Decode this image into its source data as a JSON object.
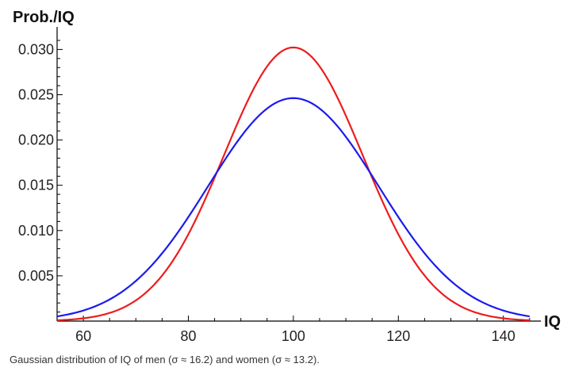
{
  "caption": "Gaussian distribution of IQ of men (σ ≈ 16.2) and women (σ ≈ 13.2).",
  "chart_data": {
    "type": "line",
    "title": "",
    "xlabel": "IQ",
    "ylabel": "Prob./IQ",
    "xlim": [
      55,
      146
    ],
    "ylim": [
      0,
      0.031
    ],
    "xticks": [
      60,
      80,
      100,
      120,
      140
    ],
    "xtick_labels": [
      "60",
      "80",
      "100",
      "120",
      "140"
    ],
    "yticks": [
      0.005,
      0.01,
      0.015,
      0.02,
      0.025,
      0.03
    ],
    "ytick_labels": [
      "0.005",
      "0.010",
      "0.015",
      "0.020",
      "0.025",
      "0.030"
    ],
    "series": [
      {
        "name": "women",
        "color": "#ee1c1c",
        "mean": 100,
        "sigma": 13.2,
        "x": [
          55,
          60,
          65,
          70,
          75,
          80,
          85,
          90,
          95,
          100,
          105,
          110,
          115,
          120,
          125,
          130,
          135,
          140,
          145
        ],
        "y": [
          0.0001,
          0.0004,
          0.0009,
          0.0024,
          0.005,
          0.0095,
          0.0159,
          0.0226,
          0.0282,
          0.0302,
          0.0282,
          0.0226,
          0.0159,
          0.0095,
          0.005,
          0.0024,
          0.0009,
          0.0004,
          0.0001
        ]
      },
      {
        "name": "men",
        "color": "#1b1bee",
        "mean": 100,
        "sigma": 16.2,
        "x": [
          55,
          60,
          65,
          70,
          75,
          80,
          85,
          90,
          95,
          100,
          105,
          110,
          115,
          120,
          125,
          130,
          135,
          140,
          145
        ],
        "y": [
          0.0005,
          0.0011,
          0.0024,
          0.0044,
          0.0076,
          0.0115,
          0.0161,
          0.0203,
          0.0235,
          0.0246,
          0.0235,
          0.0203,
          0.0161,
          0.0115,
          0.0076,
          0.0044,
          0.0024,
          0.0011,
          0.0005
        ]
      }
    ]
  }
}
